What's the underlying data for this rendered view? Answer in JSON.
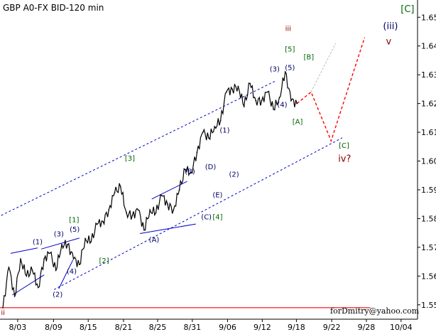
{
  "chart_data": {
    "type": "line",
    "title": "GBP A0-FX BID-120 min",
    "credit": "forDmitry@yahoo.com",
    "x_ticks": [
      "8/03",
      "8/09",
      "8/15",
      "8/21",
      "8/25",
      "8/31",
      "9/06",
      "9/12",
      "9/18",
      "9/22",
      "9/28",
      "10/04"
    ],
    "y_ticks": [
      "1.55",
      "1.56",
      "1.57",
      "1.58",
      "1.59",
      "1.60",
      "1.61",
      "1.62",
      "1.63",
      "1.64",
      "1.65"
    ],
    "ylim": [
      1.545,
      1.656
    ],
    "grid": false,
    "series": [
      {
        "style": "price",
        "color": "#000000",
        "x": [
          0,
          1,
          2,
          3,
          4,
          5,
          6,
          7,
          8,
          9,
          10,
          11,
          12,
          13,
          14,
          15,
          16,
          17,
          18,
          19,
          20,
          21,
          22,
          23,
          24,
          25,
          26,
          27,
          28,
          29,
          30,
          31,
          32,
          33,
          34,
          35,
          36,
          37,
          38,
          39,
          40,
          41,
          42,
          43,
          44,
          45,
          46,
          47,
          48,
          49,
          50
        ],
        "values": [
          1.549,
          1.563,
          1.553,
          1.566,
          1.56,
          1.562,
          1.556,
          1.566,
          1.568,
          1.562,
          1.571,
          1.571,
          1.566,
          1.564,
          1.573,
          1.572,
          1.578,
          1.579,
          1.583,
          1.589,
          1.591,
          1.582,
          1.581,
          1.583,
          1.576,
          1.583,
          1.582,
          1.588,
          1.585,
          1.583,
          1.59,
          1.597,
          1.596,
          1.603,
          1.61,
          1.608,
          1.612,
          1.614,
          1.624,
          1.625,
          1.626,
          1.619,
          1.627,
          1.621,
          1.621,
          1.624,
          1.618,
          1.622,
          1.631,
          1.621,
          1.62
        ]
      },
      {
        "style": "forecast",
        "color": "#ff0000",
        "x": [
          50,
          52.4,
          55.8,
          61.5
        ],
        "values": [
          1.62,
          1.624,
          1.607,
          1.643
        ]
      },
      {
        "style": "alternate-forecast",
        "color": "#bbbbbb",
        "x": [
          52.4,
          56.6
        ],
        "values": [
          1.624,
          1.641
        ]
      },
      {
        "style": "channel-upper",
        "color": "#0000cc",
        "x": [
          -0.3,
          46.2
        ],
        "values": [
          1.5811,
          1.6277
        ]
      },
      {
        "style": "channel-lower",
        "color": "#0000cc",
        "x": [
          8.7,
          57.7
        ],
        "values": [
          1.5553,
          1.6081
        ]
      },
      {
        "style": "support-level",
        "color": "#ff0000",
        "x": [
          -0.5,
          62.5
        ],
        "values": [
          1.549,
          1.549
        ]
      },
      {
        "style": "wedge-1-upper",
        "color": "#0000cc",
        "x": [
          1.3,
          5.9
        ],
        "values": [
          1.5679,
          1.5698
        ]
      },
      {
        "style": "wedge-1-lower",
        "color": "#0000cc",
        "x": [
          1.6,
          7.0
        ],
        "values": [
          1.5534,
          1.5604
        ]
      },
      {
        "style": "wedge-2-upper",
        "color": "#0000cc",
        "x": [
          6.5,
          13.0
        ],
        "values": [
          1.5694,
          1.5732
        ]
      },
      {
        "style": "wedge-2-lower",
        "color": "#0000cc",
        "x": [
          9.5,
          11.9
        ],
        "values": [
          1.5556,
          1.5656
        ]
      },
      {
        "style": "wedge-3-upper",
        "color": "#0000cc",
        "x": [
          25.3,
          31.3
        ],
        "values": [
          1.5868,
          1.5929
        ]
      },
      {
        "style": "wedge-3-lower",
        "color": "#0000cc",
        "x": [
          23.3,
          32.8
        ],
        "values": [
          1.5748,
          1.5781
        ]
      }
    ],
    "annotations": [
      {
        "text": "ii",
        "x": 0,
        "y": 1.5465,
        "color": "#8b0000",
        "size": "small"
      },
      {
        "text": "(1)",
        "x": 5.9,
        "y": 1.5711,
        "color": "#000066",
        "size": "small"
      },
      {
        "text": "(2)",
        "x": 9.3,
        "y": 1.5528,
        "color": "#000066",
        "size": "small"
      },
      {
        "text": "(3)",
        "x": 9.5,
        "y": 1.5738,
        "color": "#000066",
        "size": "small"
      },
      {
        "text": "(4)",
        "x": 11.7,
        "y": 1.5608,
        "color": "#000066",
        "size": "small"
      },
      {
        "text": "(5)",
        "x": 12.2,
        "y": 1.5754,
        "color": "#000066",
        "size": "small"
      },
      {
        "text": "[1]",
        "x": 12.1,
        "y": 1.5788,
        "color": "#006600",
        "size": "small"
      },
      {
        "text": "[2]",
        "x": 17.2,
        "y": 1.5645,
        "color": "#006600",
        "size": "small"
      },
      {
        "text": "[3]",
        "x": 21.6,
        "y": 1.6001,
        "color": "#006600",
        "size": "small"
      },
      {
        "text": "(A)",
        "x": 25.7,
        "y": 1.5718,
        "color": "#000066",
        "size": "small"
      },
      {
        "text": "(B)",
        "x": 31.8,
        "y": 1.5955,
        "color": "#000066",
        "size": "small"
      },
      {
        "text": "(C)",
        "x": 34.6,
        "y": 1.5797,
        "color": "#000066",
        "size": "small"
      },
      {
        "text": "(D)",
        "x": 35.3,
        "y": 1.5972,
        "color": "#000066",
        "size": "small"
      },
      {
        "text": "(E)",
        "x": 36.5,
        "y": 1.5874,
        "color": "#000066",
        "size": "small"
      },
      {
        "text": "[4]",
        "x": 36.5,
        "y": 1.5797,
        "color": "#006600",
        "size": "small"
      },
      {
        "text": "(1)",
        "x": 37.7,
        "y": 1.6099,
        "color": "#000066",
        "size": "small"
      },
      {
        "text": "(2)",
        "x": 39.3,
        "y": 1.5946,
        "color": "#000066",
        "size": "small"
      },
      {
        "text": "iii",
        "x": 48.5,
        "y": 1.6452,
        "color": "#8b0000",
        "size": "small"
      },
      {
        "text": "[5]",
        "x": 48.8,
        "y": 1.6381,
        "color": "#006600",
        "size": "small"
      },
      {
        "text": "(3)",
        "x": 46.2,
        "y": 1.6312,
        "color": "#000066",
        "size": "small"
      },
      {
        "text": "(5)",
        "x": 48.8,
        "y": 1.6316,
        "color": "#000066",
        "size": "small"
      },
      {
        "text": "(4)",
        "x": 47.5,
        "y": 1.6188,
        "color": "#000066",
        "size": "small"
      },
      {
        "text": "[B]",
        "x": 52.0,
        "y": 1.6353,
        "color": "#006600",
        "size": "small"
      },
      {
        "text": "[A]",
        "x": 50.1,
        "y": 1.6129,
        "color": "#006600",
        "size": "small"
      },
      {
        "text": "[C]",
        "x": 58.0,
        "y": 1.6046,
        "color": "#006600",
        "size": "small"
      },
      {
        "text": "iv?",
        "x": 58.1,
        "y": 1.5998,
        "color": "#8b0000",
        "size": "large"
      },
      {
        "text": "(iii)",
        "x": 65.9,
        "y": 1.6459,
        "color": "#000066",
        "size": "large"
      },
      {
        "text": "v",
        "x": 65.6,
        "y": 1.6405,
        "color": "#8b0000",
        "size": "large"
      },
      {
        "text": "[C]",
        "x": 68.8,
        "y": 1.6518,
        "color": "#006600",
        "size": "large"
      }
    ]
  }
}
